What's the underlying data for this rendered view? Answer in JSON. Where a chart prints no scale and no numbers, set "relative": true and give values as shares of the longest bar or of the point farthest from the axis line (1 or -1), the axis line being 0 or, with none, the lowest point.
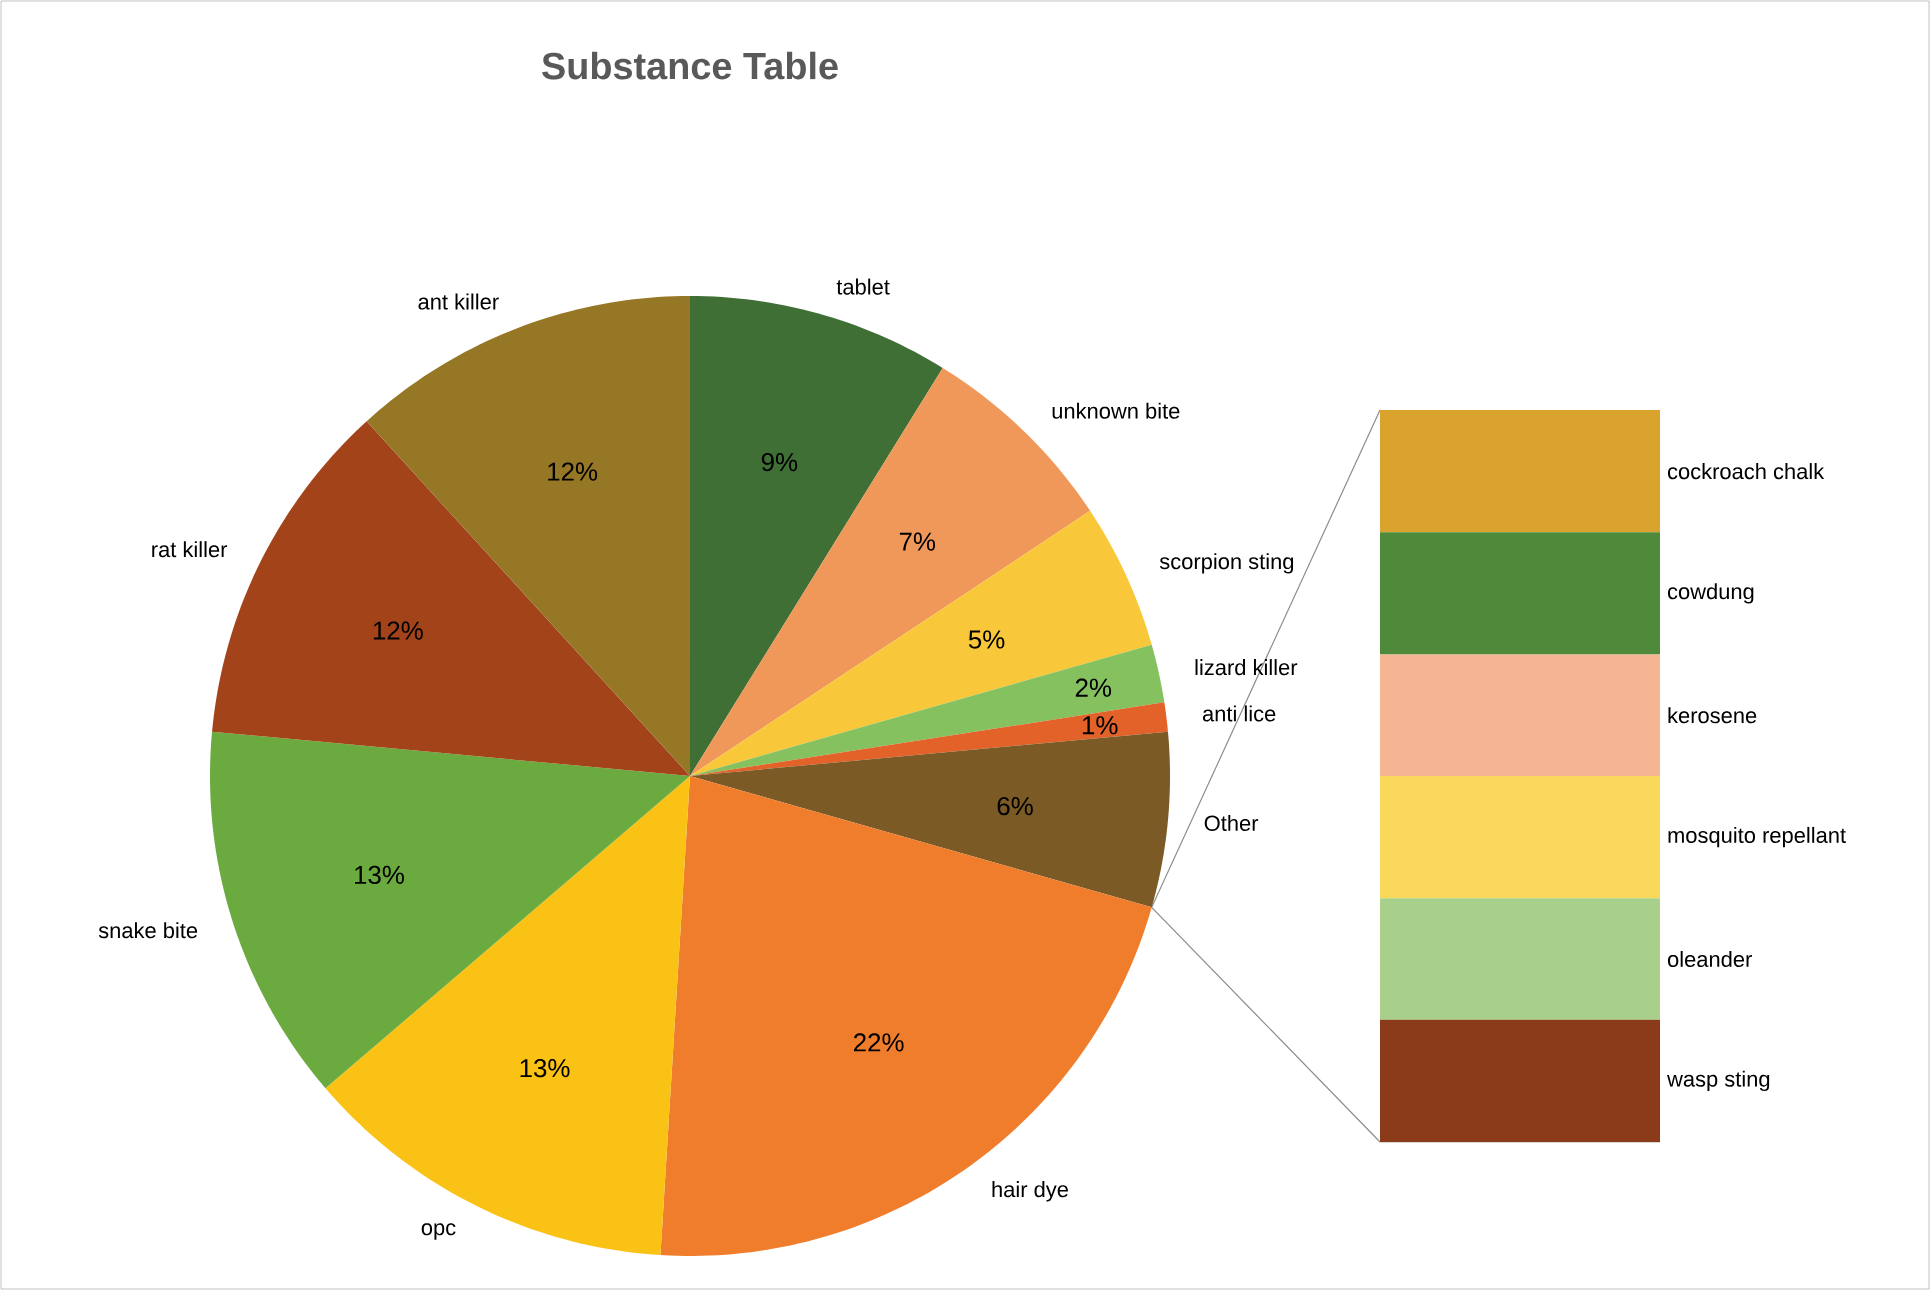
{
  "chart_data": [
    {
      "type": "pie",
      "title": "Substance Table",
      "categories": [
        "tablet",
        "unknown bite",
        "scorpion sting",
        "lizard killer",
        "anti lice",
        "Other",
        "hair dye",
        "opc",
        "snake bite",
        "rat killer",
        "ant killer"
      ],
      "values": [
        9,
        7,
        5,
        2,
        1,
        6,
        22,
        13,
        13,
        12,
        12
      ],
      "value_labels": [
        "9%",
        "7%",
        "5%",
        "2%",
        "1%",
        "6%",
        "22%",
        "13%",
        "13%",
        "12%",
        "12%"
      ],
      "colors": [
        "#3f6f35",
        "#f0975a",
        "#f9c83a",
        "#86c160",
        "#e2622a",
        "#7b5a26",
        "#ef7d2c",
        "#fbc216",
        "#6aaa3f",
        "#a3431a",
        "#967726"
      ]
    },
    {
      "type": "bar",
      "stacked": true,
      "relative": true,
      "categories": [
        null
      ],
      "series": [
        {
          "name": "wasp sting",
          "color": "#8c3b1a",
          "values": [
            0.167
          ]
        },
        {
          "name": "oleander",
          "color": "#a9d08a",
          "values": [
            0.166
          ]
        },
        {
          "name": "mosquito repellant",
          "color": "#fad85c",
          "values": [
            0.167
          ]
        },
        {
          "name": "kerosene",
          "color": "#f6b592",
          "values": [
            0.166
          ]
        },
        {
          "name": "cowdung",
          "color": "#4e8a3a",
          "values": [
            0.167
          ]
        },
        {
          "name": "cockroach chalk",
          "color": "#d9a32e",
          "values": [
            0.167
          ]
        }
      ]
    }
  ]
}
